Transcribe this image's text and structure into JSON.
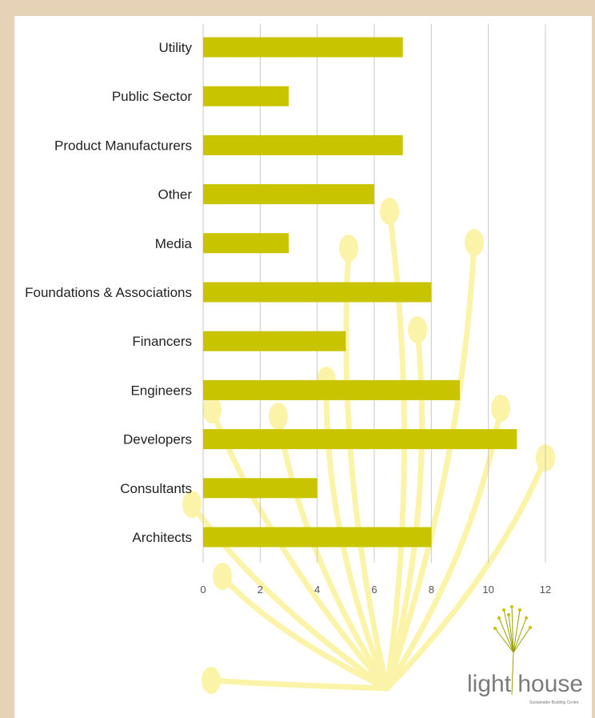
{
  "colors": {
    "background": "#e6d2b6",
    "panel": "#ffffff",
    "bar": "#c8c400",
    "grid": "#c8c8c8",
    "watermark": "#fbf3a8"
  },
  "logo": {
    "text": "light house",
    "tagline": "Sustainable Building Centre",
    "icon": "dandelion-icon"
  },
  "chart_data": {
    "type": "bar",
    "orientation": "horizontal",
    "categories": [
      "Utility",
      "Public Sector",
      "Product Manufacturers",
      "Other",
      "Media",
      "Foundations & Associations",
      "Financers",
      "Engineers",
      "Developers",
      "Consultants",
      "Architects"
    ],
    "values": [
      7,
      3,
      7,
      6,
      3,
      8,
      5,
      9,
      11,
      4,
      8
    ],
    "xlim": [
      0,
      12
    ],
    "xticks": [
      0,
      2,
      4,
      6,
      8,
      10,
      12
    ],
    "grid": true,
    "title": "",
    "xlabel": "",
    "ylabel": ""
  }
}
